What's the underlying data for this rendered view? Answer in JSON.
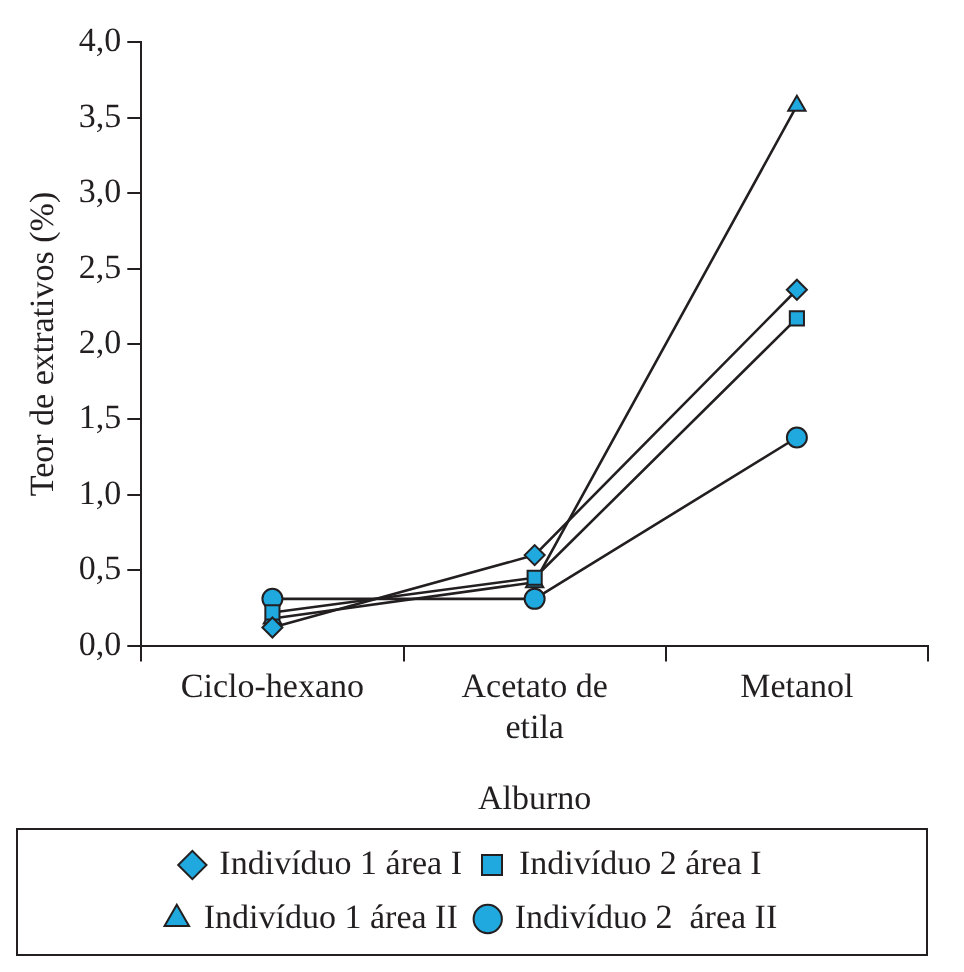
{
  "chart_data": {
    "type": "line",
    "xlabel": "Alburno",
    "ylabel": "Teor de extrativos (%)",
    "categories": [
      "Ciclo-hexano",
      "Acetato de etila",
      "Metanol"
    ],
    "ylim": [
      0,
      4
    ],
    "yticks": [
      {
        "value": 0,
        "label": "0,0"
      },
      {
        "value": 0.5,
        "label": "0,5"
      },
      {
        "value": 1,
        "label": "1,0"
      },
      {
        "value": 1.5,
        "label": "1,5"
      },
      {
        "value": 2,
        "label": "2,0"
      },
      {
        "value": 2.5,
        "label": "2,5"
      },
      {
        "value": 3,
        "label": "3,0"
      },
      {
        "value": 3.5,
        "label": "3,5"
      },
      {
        "value": 4,
        "label": "4,0"
      }
    ],
    "grid": false,
    "legend": "bottom",
    "line_style": "solid",
    "series": [
      {
        "name": "Indivíduo 1 área I",
        "color": "#1fa9df",
        "marker": "diamond",
        "values": [
          0.12,
          0.6,
          2.36
        ]
      },
      {
        "name": "Indivíduo 2 área I",
        "color": "#1fa9df",
        "marker": "square",
        "values": [
          0.22,
          0.45,
          2.17
        ]
      },
      {
        "name": "Indivíduo 1 área II",
        "color": "#1fa9df",
        "marker": "triangle",
        "values": [
          0.18,
          0.42,
          3.58
        ]
      },
      {
        "name": "Indivíduo 2  área II",
        "color": "#1fa9df",
        "marker": "circle",
        "values": [
          0.31,
          0.31,
          1.38
        ]
      }
    ]
  }
}
